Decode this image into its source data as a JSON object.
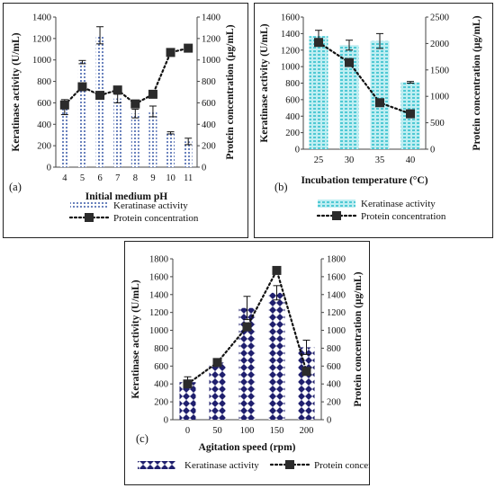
{
  "chart_data": [
    {
      "panel": "(a)",
      "type": "bar",
      "xlabel": "Initial medium pH",
      "ylabel_left": "Keratinase activity (U/mL)",
      "ylabel_right": "Protein concentration (µg/mL)",
      "categories": [
        "4",
        "5",
        "6",
        "7",
        "8",
        "9",
        "10",
        "11"
      ],
      "ylim_left": [
        0,
        1400
      ],
      "ylim_right": [
        0,
        1400
      ],
      "yticks_left": [
        "0",
        "200",
        "400",
        "600",
        "800",
        "1000",
        "1200",
        "1400"
      ],
      "yticks_right": [
        "0",
        "200",
        "400",
        "600",
        "800",
        "1000",
        "1200",
        "1400"
      ],
      "series": [
        {
          "name": "Keratinase activity",
          "type": "bar",
          "axis": "left",
          "values": [
            560,
            980,
            1230,
            640,
            500,
            520,
            320,
            240
          ],
          "errors": [
            70,
            15,
            80,
            40,
            40,
            50,
            10,
            30
          ]
        },
        {
          "name": "Protein concentration",
          "type": "line",
          "axis": "right",
          "values": [
            580,
            750,
            670,
            720,
            590,
            680,
            1070,
            1110
          ]
        }
      ],
      "legend": "bottom"
    },
    {
      "panel": "(b)",
      "type": "bar",
      "xlabel": "Incubation temperature (°C)",
      "ylabel_left": "Keratinase activity (U/mL)",
      "ylabel_right": "Protein concentration (µg/mL)",
      "categories": [
        "25",
        "30",
        "35",
        "40"
      ],
      "ylim_left": [
        0,
        1600
      ],
      "ylim_right": [
        0,
        2500
      ],
      "yticks_left": [
        "0",
        "200",
        "400",
        "600",
        "800",
        "1000",
        "1200",
        "1400",
        "1600"
      ],
      "yticks_right": [
        "0",
        "500",
        "1000",
        "1500",
        "2000",
        "2500"
      ],
      "series": [
        {
          "name": "Keratinase activity",
          "type": "bar",
          "axis": "left",
          "values": [
            1370,
            1260,
            1310,
            810
          ],
          "errors": [
            70,
            60,
            90,
            10
          ]
        },
        {
          "name": "Protein concentration",
          "type": "line",
          "axis": "right",
          "values": [
            2020,
            1640,
            880,
            670
          ]
        }
      ],
      "legend": "bottom"
    },
    {
      "panel": "(c)",
      "type": "bar",
      "xlabel": "Agitation speed (rpm)",
      "ylabel_left": "Keratinase activity (U/mL)",
      "ylabel_right": "Protein concentration (µg/mL)",
      "categories": [
        "0",
        "50",
        "100",
        "150",
        "200"
      ],
      "ylim_left": [
        0,
        1800
      ],
      "ylim_right": [
        0,
        1800
      ],
      "yticks_left": [
        "0",
        "200",
        "400",
        "600",
        "800",
        "1000",
        "1200",
        "1400",
        "1600",
        "1800"
      ],
      "yticks_right": [
        "0",
        "200",
        "400",
        "600",
        "800",
        "1000",
        "1200",
        "1400",
        "1600",
        "1800"
      ],
      "series": [
        {
          "name": "Keratinase activity",
          "type": "bar",
          "axis": "left",
          "values": [
            420,
            640,
            1250,
            1420,
            810
          ],
          "errors": [
            60,
            20,
            130,
            80,
            80
          ]
        },
        {
          "name": "Protein concentration",
          "type": "line",
          "axis": "right",
          "values": [
            400,
            640,
            1040,
            1670,
            540
          ]
        }
      ],
      "legend": "bottom"
    }
  ],
  "style": {
    "bar_color_a": "#3b5aa8",
    "bar_color_b": "#4fc9d4",
    "bar_color_c": "#1f1f6e",
    "line_color": "#111111"
  }
}
